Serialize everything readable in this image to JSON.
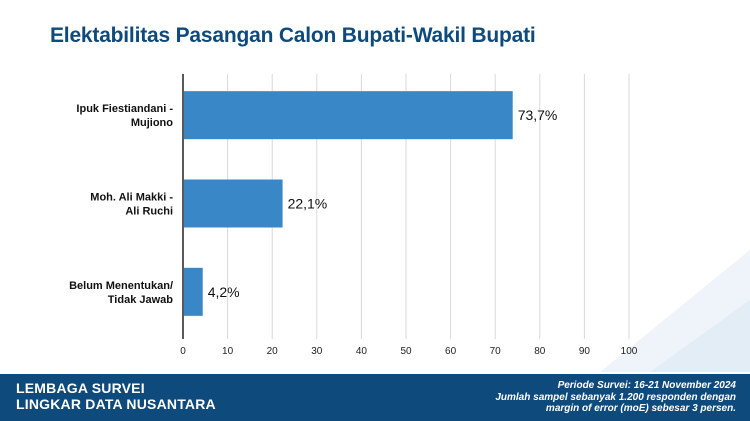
{
  "title": "Elektabilitas Pasangan Calon Bupati-Wakil Bupati",
  "colors": {
    "bar": "#3a87c8",
    "title": "#0f4a7c",
    "footer_bg": "#0f4a7c",
    "grid": "#d9d9d9",
    "axis": "#222222"
  },
  "chart_data": {
    "type": "bar",
    "orientation": "horizontal",
    "categories": [
      [
        "Ipuk Fiestiandani -",
        "Mujiono"
      ],
      [
        "Moh. Ali Makki -",
        "Ali Ruchi"
      ],
      [
        "Belum Menentukan/",
        "Tidak Jawab"
      ]
    ],
    "values": [
      73.7,
      22.1,
      4.2
    ],
    "value_labels": [
      "73,7%",
      "22,1%",
      "4,2%"
    ],
    "xlim": [
      0,
      100
    ],
    "xticks": [
      0,
      10,
      20,
      30,
      40,
      50,
      60,
      70,
      80,
      90,
      100
    ],
    "grid": true,
    "legend": "none"
  },
  "footer": {
    "org_line1": "LEMBAGA SURVEI",
    "org_line2": "LINGKAR DATA NUSANTARA",
    "period": "Periode Survei: 16-21 November 2024",
    "sample_line1": "Jumlah sampel sebanyak 1.200 responden dengan",
    "sample_line2": "margin of error (moE) sebesar 3 persen."
  }
}
